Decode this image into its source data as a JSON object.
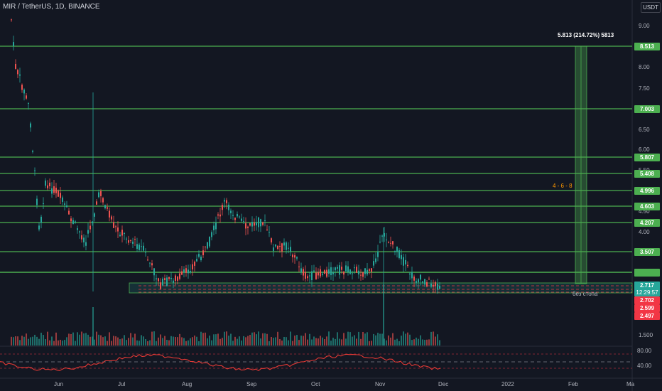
{
  "header": {
    "symbol": "MIR / TetherUS, 1D, BINANCE",
    "currency": "USDT"
  },
  "price_axis": {
    "ticks": [
      "9.00",
      "8.00",
      "7.50",
      "6.50",
      "6.00",
      "5.50",
      "4.50",
      "4.00",
      "1.500"
    ],
    "rsi_ticks": [
      "80.00",
      "40.00"
    ]
  },
  "level_labels": [
    {
      "text": "8.513",
      "price": 8.513,
      "color": "#4caf50"
    },
    {
      "text": "7.003",
      "price": 7.003,
      "color": "#4caf50"
    },
    {
      "text": "5.807",
      "price": 5.807,
      "color": "#4caf50"
    },
    {
      "text": "5.408",
      "price": 5.408,
      "color": "#4caf50"
    },
    {
      "text": "4.996",
      "price": 4.996,
      "color": "#4caf50"
    },
    {
      "text": "4.603",
      "price": 4.603,
      "color": "#4caf50"
    },
    {
      "text": "4.207",
      "price": 4.207,
      "color": "#4caf50"
    },
    {
      "text": "3.507",
      "price": 3.507,
      "color": "#4caf50"
    }
  ],
  "price_labels": [
    {
      "text": "2.717",
      "color": "#26a69a"
    },
    {
      "text": "12:29:57",
      "color": "#26a69a"
    },
    {
      "text": "2.702",
      "color": "#f23645"
    },
    {
      "text": "2.599",
      "color": "#f23645"
    },
    {
      "text": "2.497",
      "color": "#f23645"
    }
  ],
  "annotations": {
    "target": "5.813 (214.72%) 5813",
    "pattern": "4 - 6 - 8",
    "stop": "без стопа"
  },
  "time_axis": [
    "Jun",
    "Jul",
    "Aug",
    "Sep",
    "Oct",
    "Nov",
    "Dec",
    "2022",
    "Feb",
    "Ma"
  ],
  "colors": {
    "up": "#26a69a",
    "down": "#ef5350",
    "level": "#4caf50",
    "rsi": "#e53935",
    "bg": "#131722"
  }
}
